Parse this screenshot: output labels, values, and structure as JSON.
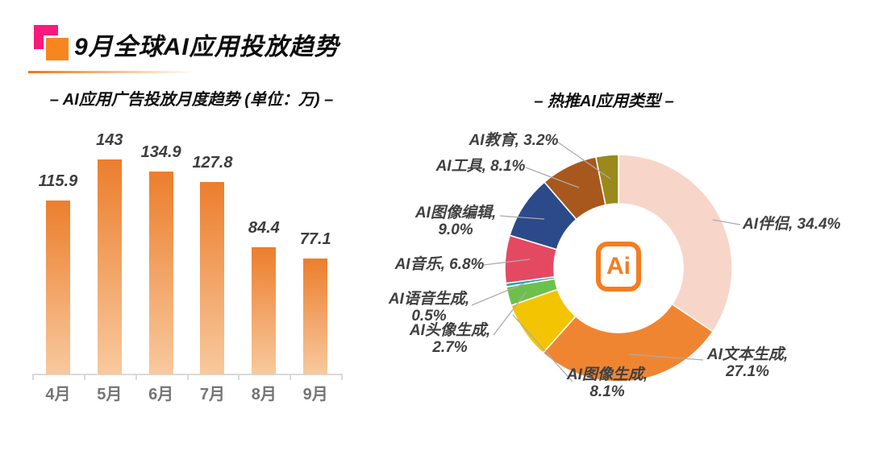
{
  "header": {
    "title": "9月全球AI应用投放趋势",
    "icon_colors": {
      "pink": "#fa1a7c",
      "orange": "#f7861f"
    },
    "divider_color": "#e8791b"
  },
  "bar_chart": {
    "title": "– AI应用广告投放月度趋势 (单位：万) –"
  },
  "donut_chart": {
    "title": "– 热推AI应用类型 –",
    "center_logo": "Ai",
    "logo_color": "#f47d21"
  },
  "chart_data": [
    {
      "type": "bar",
      "title": "AI应用广告投放月度趋势",
      "unit": "万",
      "categories": [
        "4月",
        "5月",
        "6月",
        "7月",
        "8月",
        "9月"
      ],
      "values": [
        115.9,
        143,
        134.9,
        127.8,
        84.4,
        77.1
      ],
      "xlabel": "",
      "ylabel": "",
      "grid": false,
      "bar_gradient_top": "#ec7e2d",
      "bar_gradient_bottom": "#f8c99e",
      "axis_color": "#d9d9d9",
      "value_label_color": "#3d3d3d",
      "category_label_color": "#757575"
    },
    {
      "type": "pie",
      "donut": true,
      "title": "热推AI应用类型",
      "start_angle_deg": 0,
      "direction": "clockwise",
      "leader_line_color": "#ababab",
      "slices": [
        {
          "name": "AI伴侣",
          "value": 34.4,
          "color": "#f8d5c9",
          "label_lines": [
            "AI伴侣, 34.4%"
          ]
        },
        {
          "name": "AI文本生成",
          "value": 27.1,
          "color": "#ef8531",
          "label_lines": [
            "AI文本生成,",
            "27.1%"
          ]
        },
        {
          "name": "AI图像生成",
          "value": 8.1,
          "color": "#f3c402",
          "label_lines": [
            "AI图像生成,",
            "8.1%"
          ]
        },
        {
          "name": "AI头像生成",
          "value": 2.7,
          "color": "#6ec04d",
          "label_lines": [
            "AI头像生成,",
            "2.7%"
          ]
        },
        {
          "name": "AI语音生成",
          "value": 0.5,
          "color": "#14a7ad",
          "label_lines": [
            "AI语音生成,",
            "0.5%"
          ]
        },
        {
          "name": "AI音乐",
          "value": 6.8,
          "color": "#e34a62",
          "label_lines": [
            "AI音乐, 6.8%"
          ]
        },
        {
          "name": "AI图像编辑",
          "value": 9.0,
          "color": "#2c4a89",
          "label_lines": [
            "AI图像编辑,",
            "9.0%"
          ]
        },
        {
          "name": "AI工具",
          "value": 8.1,
          "color": "#a8581c",
          "label_lines": [
            "AI工具, 8.1%"
          ]
        },
        {
          "name": "AI教育",
          "value": 3.2,
          "color": "#9a891b",
          "label_lines": [
            "AI教育, 3.2%"
          ]
        }
      ]
    }
  ]
}
